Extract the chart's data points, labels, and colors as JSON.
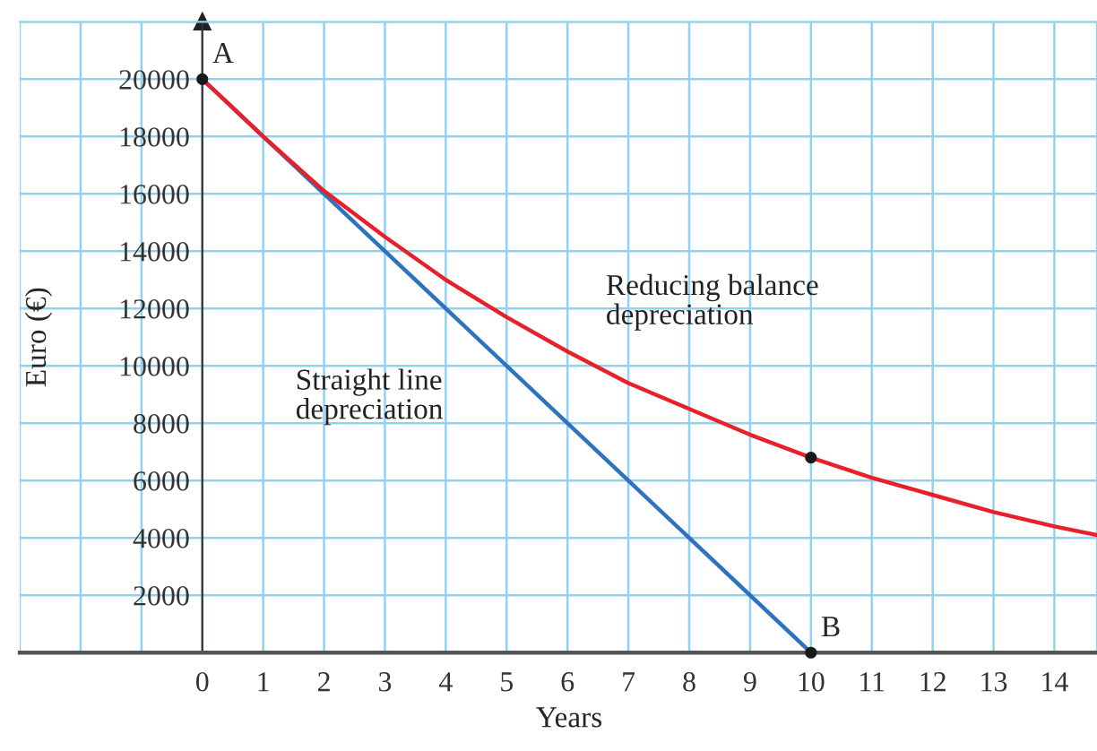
{
  "chart_data": {
    "type": "line",
    "xlabel": "Years",
    "ylabel": "Euro (€)",
    "xlim": [
      -3,
      14.7
    ],
    "ylim": [
      0,
      22000
    ],
    "xticks": [
      0,
      1,
      2,
      3,
      4,
      5,
      6,
      7,
      8,
      9,
      10,
      11,
      12,
      13,
      14
    ],
    "yticks": [
      2000,
      4000,
      6000,
      8000,
      10000,
      12000,
      14000,
      16000,
      18000,
      20000
    ],
    "grid": true,
    "legend": false,
    "series": [
      {
        "name": "Straight line depreciation",
        "color": "#2f73c0",
        "x": [
          0,
          10
        ],
        "values": [
          20000,
          0
        ]
      },
      {
        "name": "Reducing balance depreciation",
        "color": "#e8202a",
        "x": [
          0,
          1,
          2,
          3,
          4,
          5,
          6,
          7,
          8,
          9,
          10,
          11,
          12,
          13,
          14,
          14.7
        ],
        "values": [
          20000,
          18000,
          16100,
          14500,
          13000,
          11700,
          10500,
          9400,
          8500,
          7600,
          6800,
          6100,
          5500,
          4900,
          4400,
          4100
        ]
      },
      {
        "type": "scatter",
        "color": "#1a1a1a",
        "x": [
          0,
          10,
          10
        ],
        "values": [
          20000,
          6800,
          0
        ]
      }
    ],
    "annotations": [
      {
        "text": "A",
        "x": 0,
        "y": 20000
      },
      {
        "text": "B",
        "x": 10,
        "y": 0
      }
    ]
  }
}
